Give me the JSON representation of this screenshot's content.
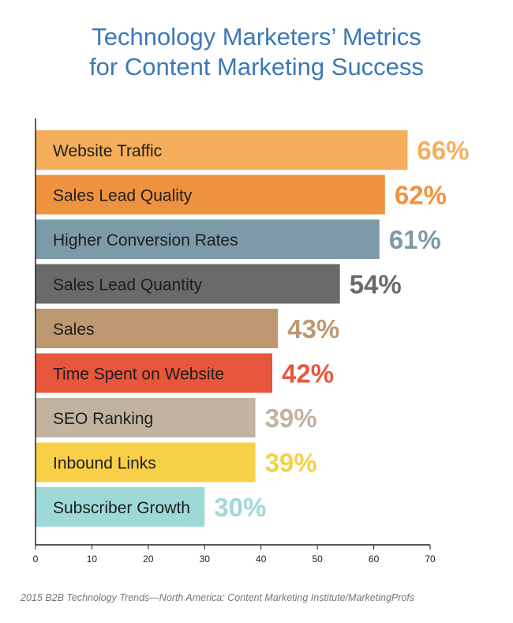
{
  "chart_data": {
    "type": "bar",
    "orientation": "horizontal",
    "title_lines": [
      "Technology Marketers’ Metrics",
      "for Content Marketing Success"
    ],
    "categories": [
      "Website Traffic",
      "Sales Lead Quality",
      "Higher Conversion Rates",
      "Sales Lead Quantity",
      "Sales",
      "Time Spent on Website",
      "SEO Ranking",
      "Inbound Links",
      "Subscriber Growth"
    ],
    "values": [
      66,
      62,
      61,
      54,
      43,
      42,
      39,
      39,
      30
    ],
    "value_labels": [
      "66%",
      "62%",
      "61%",
      "54%",
      "43%",
      "42%",
      "39%",
      "39%",
      "30%"
    ],
    "colors": [
      "#f5ae5b",
      "#ef9240",
      "#7d9aa8",
      "#6a6a6a",
      "#be9870",
      "#e8563c",
      "#c1b3a0",
      "#f7d047",
      "#9ed9d8"
    ],
    "xlim": [
      0,
      70
    ],
    "xticks": [
      0,
      10,
      20,
      30,
      40,
      50,
      60,
      70
    ],
    "grid": false,
    "legend": "none"
  },
  "source": "2015 B2B Technology Trends—North America: Content Marketing Institute/MarketingProfs"
}
